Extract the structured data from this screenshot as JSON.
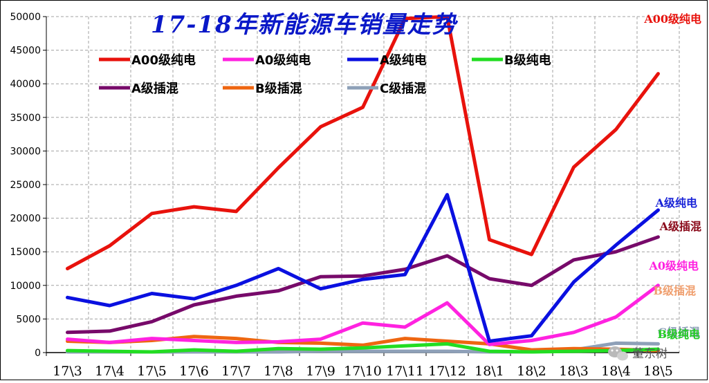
{
  "chart_data": {
    "type": "line",
    "title": "17-18年新能源车销量走势",
    "ylim": [
      0,
      50000
    ],
    "yticks": [
      0,
      5000,
      10000,
      15000,
      20000,
      25000,
      30000,
      35000,
      40000,
      45000,
      50000
    ],
    "categories": [
      "17\\3",
      "17\\4",
      "17\\5",
      "17\\6",
      "17\\7",
      "17\\8",
      "17\\9",
      "17\\10",
      "17\\11",
      "17\\12",
      "18\\1",
      "18\\2",
      "18\\3",
      "18\\4",
      "18\\5"
    ],
    "grid": true,
    "legend_position": "top",
    "series": [
      {
        "name": "A00级纯电",
        "color": "#e8120c",
        "values": [
          12500,
          15900,
          20700,
          21700,
          21000,
          27500,
          33600,
          36500,
          49700,
          50000,
          16800,
          14600,
          27600,
          33200,
          41500
        ]
      },
      {
        "name": "A0级纯电",
        "color": "#ff22e0",
        "values": [
          2000,
          1500,
          2100,
          1800,
          1500,
          1600,
          2000,
          4400,
          3800,
          7400,
          1200,
          1800,
          3000,
          5300,
          10000
        ]
      },
      {
        "name": "A级纯电",
        "color": "#0a10e0",
        "values": [
          8200,
          7000,
          8800,
          8000,
          10000,
          12500,
          9500,
          10900,
          11600,
          23500,
          1700,
          2500,
          10500,
          16000,
          21200
        ]
      },
      {
        "name": "B级纯电",
        "color": "#22dd22",
        "values": [
          300,
          200,
          100,
          400,
          200,
          600,
          500,
          700,
          1000,
          1300,
          200,
          100,
          200,
          300,
          500
        ]
      },
      {
        "name": "A级插混",
        "color": "#770a6a",
        "values": [
          3000,
          3200,
          4600,
          7100,
          8400,
          9200,
          11300,
          11400,
          12400,
          14400,
          11000,
          10000,
          13800,
          15000,
          17200
        ]
      },
      {
        "name": "B级插混",
        "color": "#ee6611",
        "values": [
          1700,
          1500,
          1800,
          2400,
          2100,
          1500,
          1400,
          1100,
          2100,
          1700,
          1300,
          400,
          600,
          500,
          300
        ]
      },
      {
        "name": "C级插混",
        "color": "#8ea0b8",
        "values": [
          100,
          100,
          100,
          100,
          100,
          100,
          200,
          200,
          200,
          200,
          100,
          100,
          400,
          1400,
          1300
        ]
      }
    ],
    "end_labels": [
      {
        "text": "A00级纯电",
        "color": "#e8120c"
      },
      {
        "text": "A级纯电",
        "color": "#1a24d8"
      },
      {
        "text": "A级插混",
        "color": "#8a0a1a"
      },
      {
        "text": "A0级纯电",
        "color": "#ff22e0"
      },
      {
        "text": "B级插混",
        "color": "#f0a070"
      },
      {
        "text": "C级插混",
        "color": "#8ea0b8"
      },
      {
        "text": "B级纯电",
        "color": "#22cc22"
      }
    ]
  },
  "watermark": "董东树"
}
